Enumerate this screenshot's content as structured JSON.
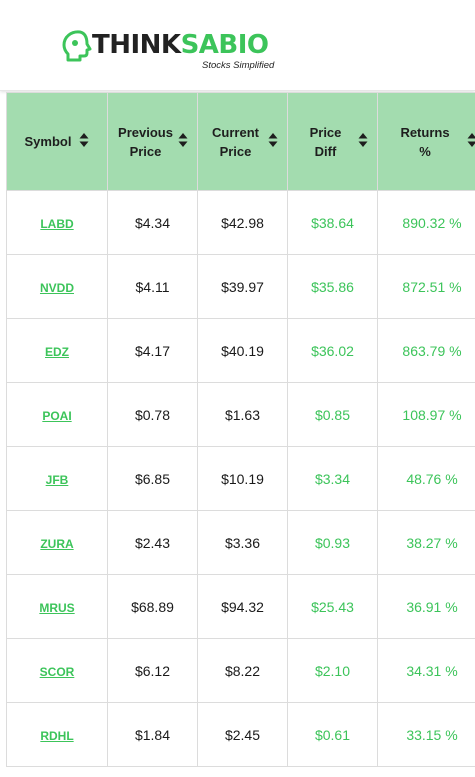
{
  "brand": {
    "name_part1": "THINK",
    "name_part2": "SABIO",
    "tagline": "Stocks Simplified"
  },
  "colors": {
    "accent": "#3cc45a",
    "header_bg": "#a3dcaf"
  },
  "table": {
    "columns": [
      {
        "line1": "Symbol",
        "line2": ""
      },
      {
        "line1": "Previous",
        "line2": "Price"
      },
      {
        "line1": "Current",
        "line2": "Price"
      },
      {
        "line1": "Price",
        "line2": "Diff"
      },
      {
        "line1": "Returns",
        "line2": "%"
      }
    ],
    "rows": [
      {
        "symbol": "LABD",
        "previous": "$4.34",
        "current": "$42.98",
        "diff": "$38.64",
        "returns": "890.32 %"
      },
      {
        "symbol": "NVDD",
        "previous": "$4.11",
        "current": "$39.97",
        "diff": "$35.86",
        "returns": "872.51 %"
      },
      {
        "symbol": "EDZ",
        "previous": "$4.17",
        "current": "$40.19",
        "diff": "$36.02",
        "returns": "863.79 %"
      },
      {
        "symbol": "POAI",
        "previous": "$0.78",
        "current": "$1.63",
        "diff": "$0.85",
        "returns": "108.97 %"
      },
      {
        "symbol": "JFB",
        "previous": "$6.85",
        "current": "$10.19",
        "diff": "$3.34",
        "returns": "48.76 %"
      },
      {
        "symbol": "ZURA",
        "previous": "$2.43",
        "current": "$3.36",
        "diff": "$0.93",
        "returns": "38.27 %"
      },
      {
        "symbol": "MRUS",
        "previous": "$68.89",
        "current": "$94.32",
        "diff": "$25.43",
        "returns": "36.91 %"
      },
      {
        "symbol": "SCOR",
        "previous": "$6.12",
        "current": "$8.22",
        "diff": "$2.10",
        "returns": "34.31 %"
      },
      {
        "symbol": "RDHL",
        "previous": "$1.84",
        "current": "$2.45",
        "diff": "$0.61",
        "returns": "33.15 %"
      }
    ]
  }
}
